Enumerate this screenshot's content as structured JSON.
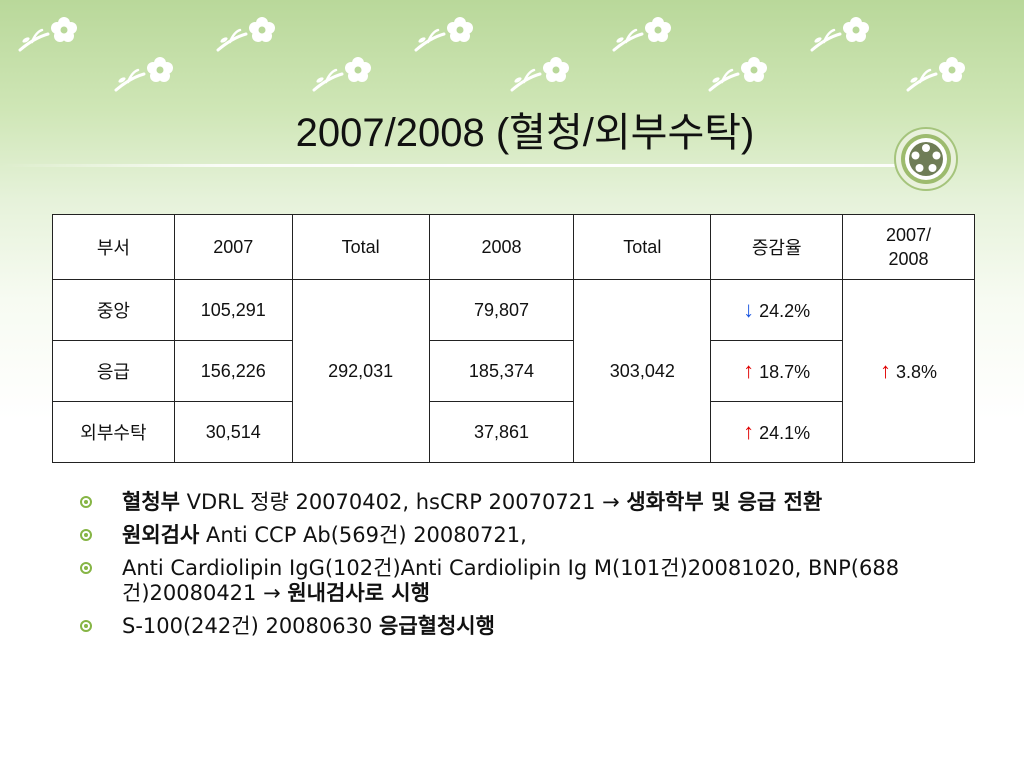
{
  "slide": {
    "title": "2007/2008 (혈청/외부수탁)",
    "theme_colors": {
      "accent_green": "#86b545",
      "arrow_up": "#e00000",
      "arrow_down": "#1a55e0"
    }
  },
  "table": {
    "headers": [
      "부서",
      "2007",
      "Total",
      "2008",
      "Total",
      "증감율",
      "2007/\n2008"
    ],
    "rows": [
      {
        "dept": "중앙",
        "y2007": "105,291",
        "y2008": "79,807",
        "arrow": "↓",
        "direction": "down",
        "rate": " 24.2%"
      },
      {
        "dept": "응급",
        "y2007": "156,226",
        "y2008": "185,374",
        "arrow": "↑",
        "direction": "up",
        "rate": " 18.7%"
      },
      {
        "dept": "외부수탁",
        "y2007": "30,514",
        "y2008": "37,861",
        "arrow": "↑",
        "direction": "up",
        "rate": " 24.1%"
      }
    ],
    "total_2007": "292,031",
    "total_2008": "303,042",
    "overall_arrow": "↑",
    "overall_rate": " 3.8%"
  },
  "bullets": [
    {
      "bold_lead": "혈청부",
      "text": " VDRL 정량 20070402, hsCRP 20070721 → ",
      "bold_tail": "생화학부 및 응급 전환"
    },
    {
      "bold_lead": "원외검사",
      "text": " Anti CCP Ab(569건) 20080721,",
      "bold_tail": ""
    },
    {
      "bold_lead": "",
      "text": "Anti Cardiolipin IgG(102건)Anti Cardiolipin Ig M(101건)20081020, BNP(688건)20080421 → ",
      "bold_tail": "원내검사로 시행"
    },
    {
      "bold_lead": "",
      "text": "S-100(242건) 20080630 ",
      "bold_tail": "응급혈청시행"
    }
  ]
}
